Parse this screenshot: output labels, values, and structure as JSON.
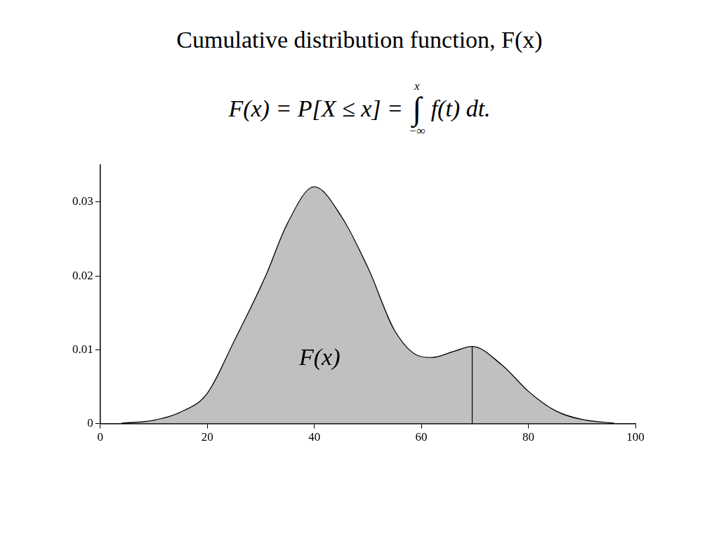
{
  "chart_data": {
    "type": "line",
    "title": "Cumulative distribution function, F(x)",
    "formula": {
      "left": "F(x) = P[X ≤ x] =",
      "upper": "x",
      "integral": "∫",
      "lower": "−∞",
      "integrand": "f(t) dt."
    },
    "annotation": "F(x)",
    "x": [
      4,
      10,
      15,
      20,
      25,
      31,
      35,
      40,
      45,
      50,
      55,
      60,
      62,
      66,
      69.5,
      75,
      80,
      85,
      90,
      96
    ],
    "values": [
      0,
      0.0004,
      0.0015,
      0.004,
      0.011,
      0.02,
      0.027,
      0.032,
      0.028,
      0.021,
      0.0125,
      0.009,
      0.0089,
      0.0097,
      0.0104,
      0.0079,
      0.0043,
      0.0017,
      0.0005,
      0
    ],
    "fill_to": 69.5,
    "color": "#000000",
    "fill_color": "#c0c0c0",
    "xlim": [
      0,
      100
    ],
    "xticks": [
      0,
      20,
      40,
      60,
      80,
      100
    ],
    "ylim": [
      0,
      0.035
    ],
    "yticks": [
      0,
      0.01,
      0.02,
      0.03
    ],
    "grid": false
  }
}
